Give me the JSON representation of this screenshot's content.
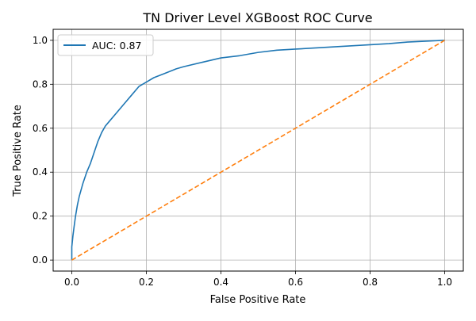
{
  "chart_data": {
    "type": "line",
    "title": "TN Driver Level XGBoost ROC Curve",
    "xlabel": "False Positive Rate",
    "ylabel": "True Positive Rate",
    "xlim": [
      -0.05,
      1.05
    ],
    "ylim": [
      -0.05,
      1.05
    ],
    "x_ticks": [
      0.0,
      0.2,
      0.4,
      0.6,
      0.8,
      1.0
    ],
    "x_tick_labels": [
      "0.0",
      "0.2",
      "0.4",
      "0.6",
      "0.8",
      "1.0"
    ],
    "y_ticks": [
      0.0,
      0.2,
      0.4,
      0.6,
      0.8,
      1.0
    ],
    "y_tick_labels": [
      "0.0",
      "0.2",
      "0.4",
      "0.6",
      "0.8",
      "1.0"
    ],
    "grid": true,
    "legend_position": "top-left",
    "series": [
      {
        "name": "AUC: 0.87",
        "color": "#1f77b4",
        "line_style": "solid",
        "x": [
          0.0,
          0.0,
          0.003,
          0.006,
          0.01,
          0.015,
          0.02,
          0.025,
          0.03,
          0.04,
          0.05,
          0.06,
          0.07,
          0.08,
          0.09,
          0.1,
          0.12,
          0.14,
          0.16,
          0.18,
          0.2,
          0.22,
          0.25,
          0.28,
          0.3,
          0.35,
          0.4,
          0.45,
          0.5,
          0.55,
          0.6,
          0.65,
          0.7,
          0.75,
          0.8,
          0.85,
          0.9,
          0.95,
          1.0
        ],
        "y": [
          0.0,
          0.06,
          0.11,
          0.15,
          0.2,
          0.25,
          0.29,
          0.32,
          0.35,
          0.4,
          0.44,
          0.49,
          0.54,
          0.58,
          0.61,
          0.63,
          0.67,
          0.71,
          0.75,
          0.79,
          0.81,
          0.83,
          0.85,
          0.87,
          0.88,
          0.9,
          0.92,
          0.93,
          0.945,
          0.955,
          0.96,
          0.965,
          0.97,
          0.975,
          0.98,
          0.985,
          0.992,
          0.996,
          1.0
        ]
      },
      {
        "color": "#ff7f0e",
        "line_style": "dashed",
        "x": [
          0.0,
          1.0
        ],
        "y": [
          0.0,
          1.0
        ]
      }
    ]
  }
}
